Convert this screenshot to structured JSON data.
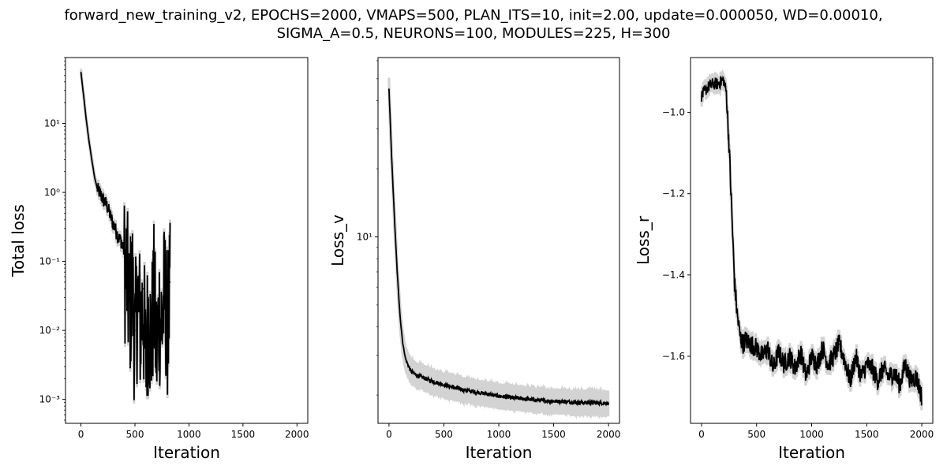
{
  "figure": {
    "title": "forward_new_training_v2, EPOCHS=2000, VMAPS=500, PLAN_ITS=10, init=2.00, update=0.000050, WD=0.00010,\nSIGMA_A=0.5, NEURONS=100, MODULES=225, H=300"
  },
  "colors": {
    "line": "#000000",
    "band": "#d3d3d3"
  },
  "chart_data": [
    {
      "type": "line",
      "id": "total_loss",
      "xlabel": "Iteration",
      "ylabel": "Total loss",
      "yscale": "log",
      "xlim": [
        -143,
        2100
      ],
      "ylim": [
        0.00045,
        90
      ],
      "xticks": [
        0,
        500,
        1000,
        1500,
        2000
      ],
      "yticks": [
        0.001,
        0.01,
        0.1,
        1,
        10
      ],
      "ytick_labels": [
        "10⁻³",
        "10⁻²",
        "10⁻¹",
        "10⁰",
        "10¹"
      ],
      "series": [
        {
          "x": [
            0,
            25,
            50,
            75,
            100,
            125,
            150,
            175,
            200,
            225,
            250,
            275,
            300,
            325,
            350,
            375,
            400,
            425,
            450,
            475,
            500,
            525,
            550,
            575,
            600,
            625,
            650,
            675,
            700,
            725,
            750,
            775,
            800,
            825
          ],
          "y": [
            55,
            25,
            11,
            5.5,
            3.0,
            1.7,
            1.15,
            1.0,
            0.82,
            0.72,
            0.6,
            0.45,
            0.35,
            0.28,
            0.22,
            0.2,
            0.14,
            0.1,
            0.03,
            0.08,
            0.01,
            0.05,
            0.02,
            0.04,
            0.005,
            0.03,
            0.01,
            0.05,
            0.008,
            0.03,
            0.02,
            0.06,
            0.02,
            0.05
          ]
        }
      ]
    },
    {
      "type": "line",
      "id": "loss_v",
      "xlabel": "Iteration",
      "ylabel": "Loss_v",
      "yscale": "log",
      "xlim": [
        -100,
        2100
      ],
      "ylim": [
        1.5,
        62
      ],
      "xticks": [
        0,
        500,
        1000,
        1500,
        2000
      ],
      "yticks": [
        10
      ],
      "ytick_labels": [
        "10¹"
      ],
      "series": [
        {
          "x": [
            0,
            25,
            50,
            75,
            100,
            125,
            150,
            175,
            200,
            250,
            300,
            400,
            500,
            600,
            700,
            800,
            900,
            1000,
            1100,
            1200,
            1300,
            1400,
            1500,
            1600,
            1700,
            1800,
            1900,
            2000
          ],
          "y": [
            45,
            22,
            12,
            7,
            4.5,
            3.4,
            2.9,
            2.7,
            2.55,
            2.45,
            2.4,
            2.3,
            2.22,
            2.15,
            2.1,
            2.06,
            2.02,
            1.98,
            1.95,
            1.93,
            1.91,
            1.89,
            1.88,
            1.87,
            1.86,
            1.85,
            1.85,
            1.84
          ]
        }
      ]
    },
    {
      "type": "line",
      "id": "loss_r",
      "xlabel": "Iteration",
      "ylabel": "Loss_r",
      "yscale": "linear",
      "xlim": [
        -100,
        2100
      ],
      "ylim": [
        -1.765,
        -0.865
      ],
      "xticks": [
        0,
        500,
        1000,
        1500,
        2000
      ],
      "yticks": [
        -1.6,
        -1.4,
        -1.2,
        -1.0
      ],
      "ytick_labels": [
        "−1.6",
        "−1.4",
        "−1.2",
        "−1.0"
      ],
      "series": [
        {
          "x": [
            0,
            50,
            100,
            150,
            200,
            225,
            250,
            275,
            300,
            325,
            350,
            375,
            400,
            450,
            500,
            550,
            600,
            650,
            700,
            750,
            800,
            850,
            900,
            950,
            1000,
            1050,
            1100,
            1150,
            1200,
            1250,
            1300,
            1350,
            1400,
            1450,
            1500,
            1550,
            1600,
            1650,
            1700,
            1750,
            1800,
            1850,
            1900,
            1950,
            2000
          ],
          "y": [
            -0.96,
            -0.94,
            -0.93,
            -0.93,
            -0.92,
            -0.95,
            -1.08,
            -1.25,
            -1.42,
            -1.5,
            -1.55,
            -1.57,
            -1.56,
            -1.57,
            -1.58,
            -1.6,
            -1.58,
            -1.63,
            -1.59,
            -1.62,
            -1.6,
            -1.63,
            -1.59,
            -1.65,
            -1.6,
            -1.62,
            -1.58,
            -1.62,
            -1.6,
            -1.57,
            -1.61,
            -1.66,
            -1.6,
            -1.65,
            -1.62,
            -1.63,
            -1.66,
            -1.63,
            -1.65,
            -1.64,
            -1.67,
            -1.62,
            -1.66,
            -1.65,
            -1.7
          ]
        }
      ]
    }
  ]
}
